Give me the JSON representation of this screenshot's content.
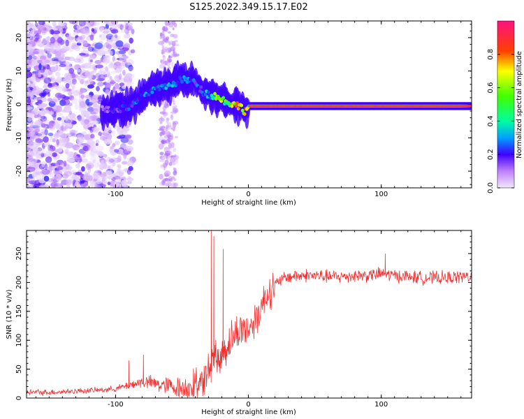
{
  "title": "S125.2022.349.15.17.E02",
  "colors": {
    "snr_line": "#f03030",
    "colormap": [
      "#f0e8ff",
      "#a040ff",
      "#2000ff",
      "#00e0ff",
      "#00ff40",
      "#ffff00",
      "#ff2020",
      "#ff1080"
    ]
  },
  "chart_data": [
    {
      "type": "heatmap",
      "name": "spectrogram",
      "xlabel": "Height of straight line (km)",
      "ylabel": "Frequency (Hz)",
      "xlim": [
        -167,
        168
      ],
      "ylim": [
        -25,
        25
      ],
      "xticks": [
        -100,
        0,
        100
      ],
      "xtick_labels": [
        "-100",
        "0",
        "100"
      ],
      "yticks": [
        -20,
        -10,
        0,
        10,
        20
      ],
      "ytick_labels": [
        "-20",
        "-10",
        "0",
        "10",
        "20"
      ],
      "colorbar": {
        "label": "Normalized spectral amplitude",
        "range": [
          0,
          1
        ],
        "ticks": [
          0,
          0.2,
          0.4,
          0.6,
          0.8
        ],
        "tick_labels": [
          "0.0",
          "0.2",
          "0.4",
          "0.6",
          "0.8"
        ]
      },
      "ridge": {
        "x": [
          -110,
          -100,
          -90,
          -80,
          -70,
          -60,
          -50,
          -40,
          -35,
          -30,
          -25,
          -20,
          -15,
          -10,
          -5,
          -3,
          0,
          5,
          20,
          50,
          90,
          100,
          130,
          160,
          168
        ],
        "frequency": [
          -1.5,
          -1.5,
          -1.0,
          2.0,
          5.0,
          5.5,
          7.5,
          7.0,
          4.0,
          3.0,
          2.5,
          1.5,
          0.5,
          0.0,
          -1.0,
          -2.0,
          -0.5,
          -0.5,
          -0.5,
          -0.5,
          -0.5,
          -0.5,
          -0.5,
          -0.5,
          -0.5
        ],
        "amplitude": [
          0.15,
          0.2,
          0.25,
          0.3,
          0.3,
          0.3,
          0.3,
          0.25,
          0.25,
          0.35,
          0.55,
          0.6,
          0.6,
          0.7,
          0.7,
          0.7,
          0.85,
          0.9,
          0.9,
          0.9,
          0.9,
          0.9,
          0.9,
          0.9,
          0.5
        ]
      }
    },
    {
      "type": "line",
      "name": "snr",
      "xlabel": "Height of straight line (km)",
      "ylabel": "SNR (10 * v/v)",
      "xlim": [
        -167,
        168
      ],
      "ylim": [
        0,
        290
      ],
      "xticks": [
        -100,
        0,
        100
      ],
      "xtick_labels": [
        "-100",
        "0",
        "100"
      ],
      "yticks": [
        0,
        50,
        100,
        150,
        200,
        250
      ],
      "ytick_labels": [
        "0",
        "50",
        "100",
        "150",
        "200",
        "250"
      ],
      "x": [
        -167,
        -150,
        -130,
        -110,
        -100,
        -90,
        -80,
        -70,
        -60,
        -50,
        -45,
        -40,
        -35,
        -30,
        -28,
        -26,
        -24,
        -22,
        -20,
        -15,
        -10,
        -5,
        0,
        5,
        10,
        15,
        20,
        25,
        30,
        40,
        50,
        60,
        70,
        80,
        90,
        100,
        110,
        120,
        130,
        140,
        150,
        160,
        168
      ],
      "y": [
        10,
        10,
        12,
        14,
        16,
        22,
        28,
        25,
        20,
        18,
        18,
        20,
        30,
        45,
        60,
        80,
        70,
        60,
        75,
        95,
        110,
        120,
        120,
        135,
        160,
        185,
        195,
        205,
        210,
        212,
        212,
        210,
        210,
        212,
        212,
        215,
        212,
        210,
        208,
        208,
        208,
        210,
        210
      ],
      "spikes": [
        {
          "x": -28,
          "y": 290
        },
        {
          "x": -26,
          "y": 280
        },
        {
          "x": -19,
          "y": 258
        },
        {
          "x": -90,
          "y": 65
        },
        {
          "x": -79,
          "y": 75
        },
        {
          "x": 103,
          "y": 250
        }
      ]
    }
  ]
}
